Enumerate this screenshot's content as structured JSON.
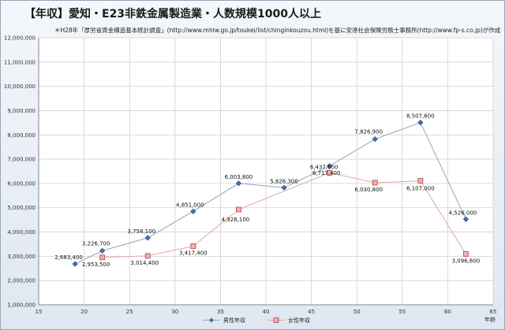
{
  "chart_data": {
    "type": "scatter",
    "title": "【年収】愛知・E23非鉄金属製造業・人数規模1000人以上",
    "subtitle": "＊H28年「厚労省賃金構造基本統計調査」(http://www.mhlw.go.jp/toukei/list/chinginkouzou.html)を基に安達社会保険労務士事務所(http://www.fp-s.co.jp)が作成",
    "xlabel": "年齢",
    "ylabel": "",
    "xlim": [
      15,
      65
    ],
    "ylim": [
      1000000,
      12000000
    ],
    "x_ticks": [
      15,
      20,
      25,
      30,
      35,
      40,
      45,
      50,
      55,
      60,
      65
    ],
    "y_ticks": [
      1000000,
      2000000,
      3000000,
      4000000,
      5000000,
      6000000,
      7000000,
      8000000,
      9000000,
      10000000,
      11000000,
      12000000
    ],
    "grid": true,
    "legend_position": "bottom",
    "series": [
      {
        "name": "男性年収",
        "color": "#4a6fa5",
        "marker": "diamond",
        "points": [
          {
            "x": 19,
            "y": 2683400,
            "label": "2,683,400"
          },
          {
            "x": 22,
            "y": 3226700,
            "label": "3,226,700"
          },
          {
            "x": 27,
            "y": 3758100,
            "label": "3,758,100"
          },
          {
            "x": 32,
            "y": 4851000,
            "label": "4,851,000"
          },
          {
            "x": 37,
            "y": 6003800,
            "label": "6,003,800"
          },
          {
            "x": 42,
            "y": 5826300,
            "label": "5,826,300"
          },
          {
            "x": 47,
            "y": 6717400,
            "label": "6,717,400"
          },
          {
            "x": 52,
            "y": 7826900,
            "label": "7,826,900"
          },
          {
            "x": 57,
            "y": 8507600,
            "label": "8,507,600"
          },
          {
            "x": 62,
            "y": 4526000,
            "label": "4,526,000"
          }
        ]
      },
      {
        "name": "女性年収",
        "color": "#c0504d",
        "marker": "square",
        "points": [
          {
            "x": 22,
            "y": 2953500,
            "label": "2,953,500"
          },
          {
            "x": 27,
            "y": 3014400,
            "label": "3,014,400"
          },
          {
            "x": 32,
            "y": 3417400,
            "label": "3,417,400"
          },
          {
            "x": 37,
            "y": 4926100,
            "label": "4,926,100"
          },
          {
            "x": 47,
            "y": 6437600,
            "label": "6,437,600"
          },
          {
            "x": 52,
            "y": 6030800,
            "label": "6,030,800"
          },
          {
            "x": 57,
            "y": 6107000,
            "label": "6,107,000"
          },
          {
            "x": 62,
            "y": 3096600,
            "label": "3,096,600"
          }
        ]
      }
    ]
  }
}
